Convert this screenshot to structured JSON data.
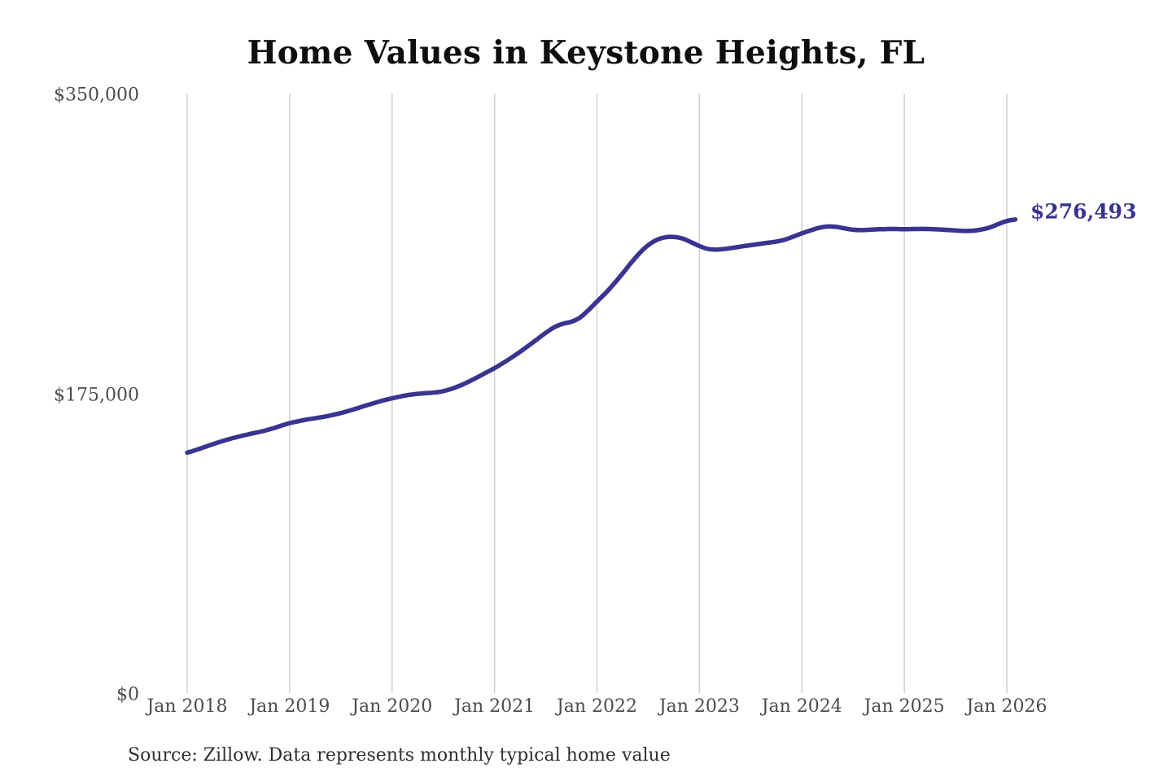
{
  "title": "Home Values in Keystone Heights, FL",
  "source_note": "Source: Zillow. Data represents monthly typical home value",
  "end_label": "$276,493",
  "colors": {
    "line": "#3a3490",
    "gridline": "#cdcdcd",
    "tick_text": "#4c4c4c",
    "title_text": "#0e0e0e",
    "background": "#ffffff"
  },
  "chart_data": {
    "type": "line",
    "title": "Home Values in Keystone Heights, FL",
    "xlabel": "",
    "ylabel": "",
    "legend": "none",
    "grid": "vertical-yearly-only",
    "ylim": [
      0,
      350000
    ],
    "y_ticks": [
      {
        "value": 0,
        "label": "$0"
      },
      {
        "value": 175000,
        "label": "$175,000"
      },
      {
        "value": 350000,
        "label": "$350,000"
      }
    ],
    "x_tick_labels": [
      "Jan 2018",
      "Jan 2019",
      "Jan 2020",
      "Jan 2021",
      "Jan 2022",
      "Jan 2023",
      "Jan 2024",
      "Jan 2025",
      "Jan 2026"
    ],
    "series": [
      {
        "name": "Monthly typical home value",
        "start": "2018-01",
        "interval": "monthly",
        "end_value_label": "$276,493",
        "values": [
          140400,
          141900,
          143600,
          145300,
          146900,
          148400,
          149700,
          150900,
          152000,
          153100,
          154500,
          156100,
          157600,
          158700,
          159700,
          160500,
          161300,
          162300,
          163500,
          164900,
          166400,
          168000,
          169500,
          170900,
          172100,
          173200,
          174100,
          174700,
          175100,
          175500,
          176300,
          177700,
          179600,
          181900,
          184400,
          187100,
          189700,
          192700,
          195900,
          199300,
          202900,
          206600,
          210300,
          213600,
          215600,
          216800,
          219200,
          223600,
          228600,
          233500,
          239000,
          245000,
          251200,
          256900,
          261500,
          264600,
          266100,
          266300,
          265400,
          263300,
          261000,
          259300,
          258900,
          259300,
          260000,
          260800,
          261500,
          262200,
          262900,
          263600,
          264700,
          266500,
          268400,
          270100,
          271600,
          272400,
          272200,
          271300,
          270500,
          270300,
          270500,
          270800,
          270900,
          270900,
          270800,
          270900,
          271000,
          270900,
          270700,
          270400,
          270100,
          269800,
          269900,
          270600,
          271800,
          273800,
          275600,
          276493
        ]
      }
    ]
  }
}
